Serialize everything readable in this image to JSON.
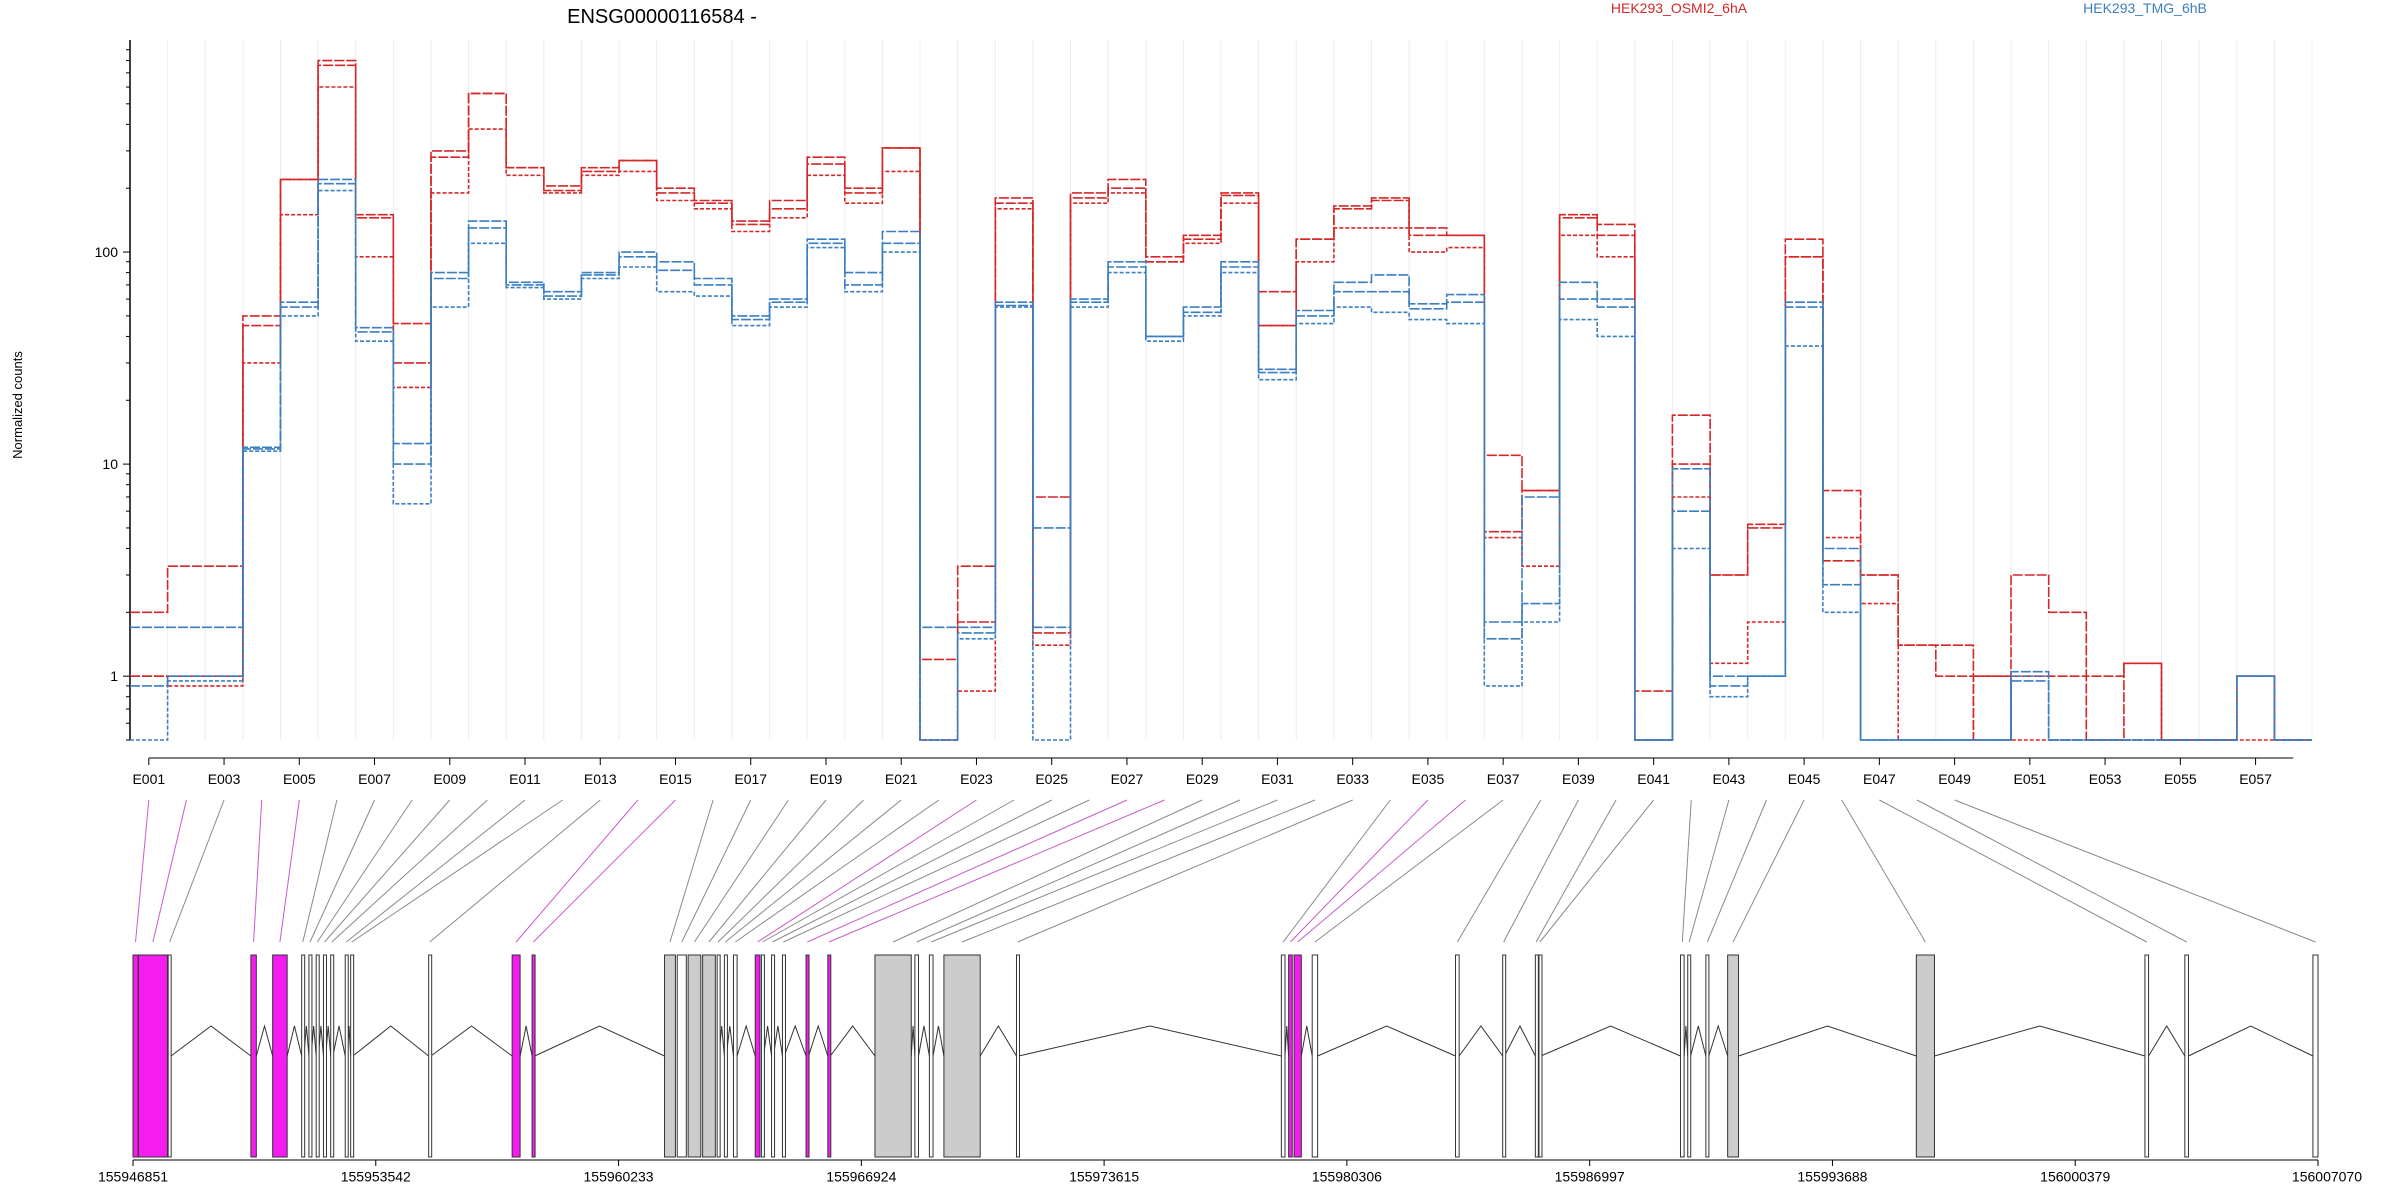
{
  "chart_data": {
    "type": "line",
    "title": "ENSG00000116584 -",
    "ylabel": "Normalized counts",
    "yscale": "log",
    "ylim": [
      0.5,
      1000
    ],
    "y_ticks": [
      1,
      10,
      100
    ],
    "y_tick_labels": [
      "1",
      "10",
      "100"
    ],
    "categories": [
      "E001",
      "E002",
      "E003",
      "E004",
      "E005",
      "E006",
      "E007",
      "E008",
      "E009",
      "E010",
      "E011",
      "E012",
      "E013",
      "E014",
      "E015",
      "E016",
      "E017",
      "E018",
      "E019",
      "E020",
      "E021",
      "E022",
      "E023",
      "E024",
      "E025",
      "E026",
      "E027",
      "E028",
      "E029",
      "E030",
      "E031",
      "E032",
      "E033",
      "E034",
      "E035",
      "E036",
      "E037",
      "E038",
      "E039",
      "E040",
      "E041",
      "E042",
      "E043",
      "E044",
      "E045",
      "E046",
      "E047",
      "E048",
      "E049",
      "E050",
      "E051",
      "E052",
      "E053",
      "E054",
      "E055",
      "E056",
      "E057",
      "E058"
    ],
    "x_tick_labels": [
      "E001",
      "E003",
      "E005",
      "E007",
      "E009",
      "E011",
      "E013",
      "E015",
      "E017",
      "E019",
      "E021",
      "E023",
      "E025",
      "E027",
      "E029",
      "E031",
      "E033",
      "E035",
      "E037",
      "E039",
      "E041",
      "E043",
      "E045",
      "E047",
      "E049",
      "E051",
      "E053",
      "E055",
      "E057"
    ],
    "legend": [
      {
        "name": "HEK293_OSMI2_6hA",
        "color": "#d62728"
      },
      {
        "name": "HEK293_TMG_6hB",
        "color": "#3a7fc1"
      }
    ],
    "series": [
      {
        "name": "HEK293_OSMI2_6hA",
        "color": "#d62728",
        "values": [
          2.0,
          3.3,
          3.3,
          45,
          220,
          800,
          145,
          30,
          280,
          560,
          250,
          205,
          250,
          270,
          190,
          170,
          140,
          160,
          260,
          190,
          310,
          1.2,
          3.3,
          170,
          7,
          180,
          200,
          95,
          120,
          185,
          65,
          115,
          160,
          175,
          130,
          120,
          11,
          7.5,
          145,
          135,
          0.85,
          10,
          3,
          5,
          95,
          7.5,
          3,
          1.4,
          1.4,
          1.0,
          3,
          2,
          1.0,
          1.15,
          0.5,
          0.5,
          1.0,
          0.5
        ]
      },
      {
        "name": "HEK293_OSMI2_6hA",
        "color": "#d62728",
        "values": [
          1.0,
          0.9,
          0.9,
          30,
          150,
          600,
          95,
          23,
          190,
          380,
          230,
          190,
          230,
          240,
          175,
          160,
          125,
          145,
          230,
          170,
          240,
          0.5,
          0.85,
          160,
          1.4,
          170,
          190,
          90,
          110,
          170,
          45,
          90,
          130,
          130,
          100,
          105,
          4.5,
          3.3,
          120,
          95,
          0.5,
          7,
          1.15,
          1.8,
          95,
          4.5,
          2.2,
          0.5,
          0.5,
          1.0,
          0.5,
          0.5,
          0.5,
          0.5,
          0.5,
          0.5,
          0.5,
          0.5
        ]
      },
      {
        "name": "HEK293_OSMI2_6hA",
        "color": "#d62728",
        "values": [
          1.0,
          1.0,
          1.0,
          50,
          220,
          760,
          150,
          46,
          300,
          560,
          250,
          195,
          240,
          270,
          200,
          175,
          135,
          175,
          280,
          200,
          310,
          0.5,
          1.8,
          180,
          1.6,
          190,
          220,
          90,
          115,
          190,
          45,
          115,
          165,
          180,
          120,
          120,
          4.8,
          7.5,
          150,
          120,
          0.5,
          17,
          3,
          5.2,
          115,
          3.5,
          3,
          1.4,
          1.0,
          0.5,
          1.0,
          1.0,
          0.5,
          1.15,
          0.5,
          0.5,
          1.0,
          0.5
        ]
      },
      {
        "name": "HEK293_TMG_6hB",
        "color": "#3a7fc1",
        "values": [
          1.7,
          1.7,
          1.7,
          12,
          55,
          220,
          42,
          12.5,
          80,
          140,
          70,
          65,
          80,
          100,
          90,
          75,
          50,
          60,
          115,
          80,
          125,
          1.7,
          1.7,
          58,
          5,
          60,
          90,
          40,
          55,
          90,
          28,
          53,
          72,
          78,
          57,
          63,
          1.8,
          2.2,
          72,
          60,
          0.5,
          9.5,
          1.0,
          1.0,
          58,
          4,
          0.5,
          0.5,
          0.5,
          0.5,
          1.05,
          0.5,
          0.5,
          0.5,
          0.5,
          0.5,
          1.0,
          0.5
        ]
      },
      {
        "name": "HEK293_TMG_6hB",
        "color": "#3a7fc1",
        "values": [
          0.5,
          0.95,
          0.95,
          11.5,
          50,
          195,
          38,
          6.5,
          55,
          110,
          68,
          60,
          75,
          85,
          65,
          62,
          45,
          55,
          105,
          65,
          100,
          0.5,
          1.5,
          55,
          0.5,
          55,
          80,
          38,
          50,
          80,
          25,
          46,
          55,
          52,
          48,
          46,
          0.9,
          1.8,
          48,
          40,
          0.5,
          4,
          0.8,
          1.0,
          36,
          2.0,
          0.5,
          0.5,
          0.5,
          0.5,
          1.0,
          0.5,
          0.5,
          0.5,
          0.5,
          0.5,
          1.0,
          0.5
        ]
      },
      {
        "name": "HEK293_TMG_6hB",
        "color": "#3a7fc1",
        "values": [
          0.9,
          1.0,
          1.0,
          11.8,
          58,
          210,
          44,
          10,
          75,
          130,
          72,
          62,
          78,
          95,
          82,
          70,
          48,
          58,
          110,
          70,
          110,
          0.5,
          1.6,
          56,
          1.7,
          58,
          85,
          40,
          52,
          85,
          27,
          50,
          65,
          65,
          54,
          58,
          1.5,
          7,
          60,
          55,
          0.5,
          6,
          0.9,
          1.0,
          55,
          2.7,
          0.5,
          0.5,
          0.5,
          0.5,
          0.95,
          0.5,
          0.5,
          0.5,
          0.5,
          0.5,
          1.0,
          0.5
        ]
      }
    ],
    "exons": [
      [
        155946851,
        155946990,
        1
      ],
      [
        155947000,
        155947800,
        1
      ],
      [
        155947820,
        155947900,
        0
      ],
      [
        155950100,
        155950250,
        1
      ],
      [
        155950700,
        155951100,
        1
      ],
      [
        155951500,
        155951560,
        0
      ],
      [
        155951700,
        155951760,
        0
      ],
      [
        155951900,
        155951960,
        0
      ],
      [
        155952100,
        155952160,
        0
      ],
      [
        155952300,
        155952360,
        0
      ],
      [
        155952700,
        155952760,
        0
      ],
      [
        155952850,
        155952910,
        0
      ],
      [
        155955000,
        155955060,
        0
      ],
      [
        155957300,
        155957520,
        1
      ],
      [
        155957850,
        155957920,
        1
      ],
      [
        155961500,
        155961800,
        0
      ],
      [
        155961850,
        155962100,
        0
      ],
      [
        155962150,
        155962500,
        0
      ],
      [
        155962550,
        155962900,
        0
      ],
      [
        155962950,
        155963000,
        0
      ],
      [
        155963150,
        155963200,
        0
      ],
      [
        155963400,
        155963500,
        0
      ],
      [
        155964000,
        155964130,
        1
      ],
      [
        155964170,
        155964230,
        0
      ],
      [
        155964450,
        155964500,
        0
      ],
      [
        155964750,
        155964800,
        0
      ],
      [
        155965400,
        155965470,
        1
      ],
      [
        155966000,
        155966070,
        1
      ],
      [
        155967300,
        155968300,
        0
      ],
      [
        155968400,
        155968500,
        0
      ],
      [
        155968800,
        155968900,
        0
      ],
      [
        155969200,
        155970200,
        0
      ],
      [
        155971200,
        155971260,
        0
      ],
      [
        155978500,
        155978600,
        0
      ],
      [
        155978700,
        155978800,
        1
      ],
      [
        155978850,
        155979050,
        1
      ],
      [
        155979350,
        155979500,
        0
      ],
      [
        155983300,
        155983400,
        0
      ],
      [
        155984600,
        155984650,
        0
      ],
      [
        155985500,
        155985540,
        0
      ],
      [
        155985600,
        155985650,
        0
      ],
      [
        155989500,
        155989600,
        0
      ],
      [
        155989700,
        155989780,
        0
      ],
      [
        155990200,
        155990280,
        0
      ],
      [
        155990800,
        155991100,
        0
      ],
      [
        155996000,
        155996500,
        0
      ],
      [
        156002300,
        156002400,
        0
      ],
      [
        156003400,
        156003500,
        0
      ],
      [
        156006930,
        156007070,
        0
      ]
    ],
    "genomic_ticks": [
      155946851,
      155953542,
      155960233,
      155966924,
      155973615,
      155980306,
      155986997,
      155993688,
      156000379,
      156007070
    ],
    "genomic_range": [
      155946851,
      156007070
    ]
  }
}
